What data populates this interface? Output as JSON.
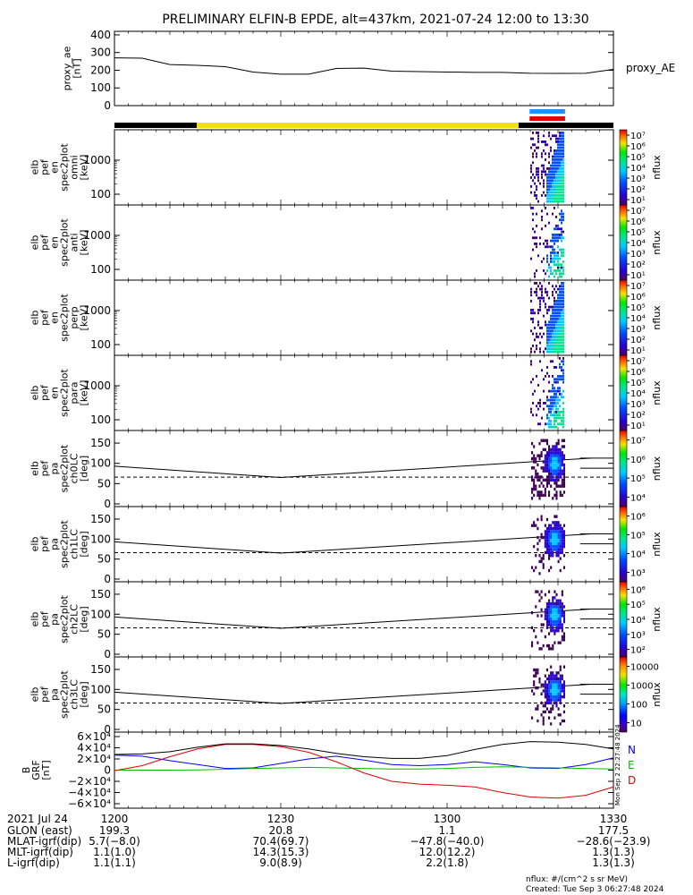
{
  "title": "PRELIMINARY ELFIN-B EPDE, alt=437km, 2021-07-24 12:00 to 13:30",
  "proxy_ae": {
    "ylabel_lines": [
      "proxy_ae",
      "[nT]"
    ],
    "legend": "proxy_AE",
    "ticks": [
      "0",
      "100",
      "200",
      "300",
      "400"
    ],
    "ylim": [
      0,
      420
    ],
    "color": "#000000"
  },
  "status_bars": {
    "sequence": [
      {
        "from": 0,
        "to": 0.165,
        "color": "#000000"
      },
      {
        "from": 0.165,
        "to": 0.81,
        "color": "#f2e014"
      },
      {
        "from": 0.81,
        "to": 1.0,
        "color": "#000000"
      }
    ],
    "blue_bar": {
      "from": 0.832,
      "to": 0.903,
      "color": "#1e90ff"
    },
    "red_bar": {
      "from": 0.832,
      "to": 0.903,
      "color": "#e00000"
    }
  },
  "energy_panels": [
    {
      "label_lines": [
        "elb",
        "pef",
        "en",
        "spec2plot",
        "omni",
        "[keV]"
      ],
      "ticks": [
        "100",
        "1000"
      ],
      "cb_label": "nflux",
      "cb_ticks": [
        "10¹",
        "10²",
        "10³",
        "10⁴",
        "10⁵",
        "10⁶",
        "10⁷"
      ]
    },
    {
      "label_lines": [
        "elb",
        "pef",
        "en",
        "spec2plot",
        "anti",
        "[keV]"
      ],
      "ticks": [
        "100",
        "1000"
      ],
      "cb_label": "nflux",
      "cb_ticks": [
        "10¹",
        "10²",
        "10³",
        "10⁴",
        "10⁵",
        "10⁶",
        "10⁷"
      ]
    },
    {
      "label_lines": [
        "elb",
        "pef",
        "en",
        "spec2plot",
        "perp",
        "[keV]"
      ],
      "ticks": [
        "100",
        "1000"
      ],
      "cb_label": "nflux",
      "cb_ticks": [
        "10¹",
        "10²",
        "10³",
        "10⁴",
        "10⁵",
        "10⁶",
        "10⁷"
      ]
    },
    {
      "label_lines": [
        "elb",
        "pef",
        "en",
        "spec2plot",
        "para",
        "[keV]"
      ],
      "ticks": [
        "100",
        "1000"
      ],
      "cb_label": "nflux",
      "cb_ticks": [
        "10¹",
        "10²",
        "10³",
        "10⁴",
        "10⁵",
        "10⁶",
        "10⁷"
      ]
    }
  ],
  "pitch_panels": [
    {
      "label_lines": [
        "elb",
        "pef",
        "pa",
        "spec2plot",
        "ch0LC",
        "[deg]"
      ],
      "ticks": [
        "0",
        "50",
        "100",
        "150"
      ],
      "cb_label": "nflux",
      "cb_ticks": [
        "10⁴",
        "10⁵",
        "10⁶",
        "10⁷"
      ]
    },
    {
      "label_lines": [
        "elb",
        "pef",
        "pa",
        "spec2plot",
        "ch1LC",
        "[deg]"
      ],
      "ticks": [
        "0",
        "50",
        "100",
        "150"
      ],
      "cb_label": "nflux",
      "cb_ticks": [
        "10³",
        "10⁴",
        "10⁵",
        "10⁶"
      ]
    },
    {
      "label_lines": [
        "elb",
        "pef",
        "pa",
        "spec2plot",
        "ch2LC",
        "[deg]"
      ],
      "ticks": [
        "0",
        "50",
        "100",
        "150"
      ],
      "cb_label": "nflux",
      "cb_ticks": [
        "10²",
        "10³",
        "10⁴",
        "10⁵",
        "10⁶"
      ]
    },
    {
      "label_lines": [
        "elb",
        "pef",
        "pa",
        "spec2plot",
        "ch3LC",
        "[deg]"
      ],
      "ticks": [
        "0",
        "50",
        "100",
        "150"
      ],
      "cb_label": "nflux",
      "cb_ticks": [
        "10",
        "100",
        "1000",
        "10000"
      ]
    }
  ],
  "bgrf": {
    "label_lines": [
      "B",
      "GRF",
      "[nT]"
    ],
    "ticks": [
      "−6×10⁴",
      "−4×10⁴",
      "−2×10⁴",
      "0",
      "2×10⁴",
      "4×10⁴",
      "6×10⁴"
    ],
    "ylim": [
      -60000,
      60000
    ],
    "legend": [
      {
        "name": "N",
        "color": "#0000ff"
      },
      {
        "name": "E",
        "color": "#00c000"
      },
      {
        "name": "D",
        "color": "#e00000"
      }
    ],
    "total_color": "#000000"
  },
  "side_stamp": "Mon Sep  2 22:27:48 2024",
  "xaxis": {
    "tick_labels": [
      "1200",
      "1230",
      "1300",
      "1330"
    ],
    "date": "2021 Jul 24",
    "rows": [
      {
        "label": "GLON (east)",
        "values": [
          "199.3",
          "20.8",
          "1.1",
          "177.5"
        ]
      },
      {
        "label": "MLAT-igrf(dip)",
        "values": [
          "5.7(−8.0)",
          "70.4(69.7)",
          "−47.8(−40.0)",
          "−28.6(−23.9)"
        ]
      },
      {
        "label": "MLT-igrf(dip)",
        "values": [
          "1.1(1.0)",
          "14.3(15.3)",
          "12.0(12.2)",
          "1.3(1.3)"
        ]
      },
      {
        "label": "L-igrf(dip)",
        "values": [
          "1.1(1.1)",
          "9.0(8.9)",
          "2.2(1.8)",
          "1.3(1.3)"
        ]
      }
    ]
  },
  "footer": {
    "units": "nflux: #/(cm^2 s sr MeV)",
    "created": "Created: Tue Sep  3 06:27:48 2024"
  },
  "chart_data": [
    {
      "type": "line",
      "title": "proxy_ae",
      "x_unit": "minutes after 12:00",
      "x": [
        0,
        5,
        10,
        15,
        20,
        25,
        30,
        35,
        40,
        45,
        50,
        55,
        60,
        65,
        70,
        75,
        80,
        85,
        90
      ],
      "series": [
        {
          "name": "proxy_AE",
          "values": [
            270,
            268,
            232,
            228,
            220,
            190,
            178,
            178,
            210,
            212,
            195,
            192,
            190,
            188,
            188,
            183,
            182,
            183,
            205
          ]
        }
      ],
      "ylim": [
        0,
        420
      ]
    },
    {
      "type": "line",
      "title": "BGRF",
      "x_unit": "minutes after 12:00",
      "x": [
        0,
        5,
        10,
        15,
        20,
        25,
        30,
        35,
        40,
        45,
        50,
        55,
        60,
        65,
        70,
        75,
        80,
        85,
        90
      ],
      "series": [
        {
          "name": "N",
          "values": [
            27000,
            25000,
            17000,
            10000,
            3000,
            4000,
            12000,
            20000,
            25000,
            18000,
            10000,
            8000,
            10000,
            15000,
            10000,
            4000,
            3000,
            10000,
            22000
          ]
        },
        {
          "name": "E",
          "values": [
            0,
            0,
            0,
            500,
            1500,
            3000,
            4000,
            5000,
            4000,
            3000,
            2000,
            2000,
            3000,
            5000,
            6000,
            5000,
            4000,
            3000,
            2000
          ]
        },
        {
          "name": "D",
          "values": [
            -1000,
            8000,
            24000,
            38000,
            46000,
            46000,
            42000,
            32000,
            15000,
            -5000,
            -20000,
            -25000,
            -27000,
            -30000,
            -40000,
            -48000,
            -50000,
            -45000,
            -30000
          ]
        },
        {
          "name": "total",
          "values": [
            28000,
            29000,
            33000,
            41000,
            47000,
            47000,
            44000,
            38000,
            30000,
            24000,
            21000,
            21000,
            26000,
            37000,
            46000,
            51000,
            50000,
            46000,
            38000
          ]
        }
      ],
      "ylim": [
        -60000,
        60000
      ]
    }
  ]
}
